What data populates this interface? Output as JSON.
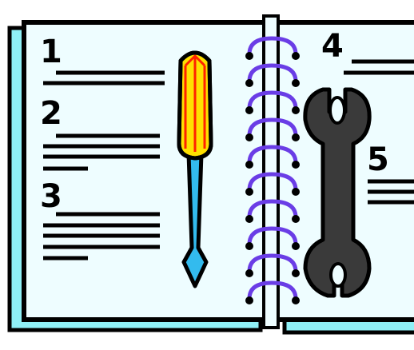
{
  "step_numbers": [
    "1",
    "2",
    "3",
    "4",
    "5"
  ],
  "colors": {
    "page": "#eefdff",
    "page_shadow": "#8ff0f6",
    "outline": "#000000",
    "spiral": "#6a3de6",
    "screwdriver_handle": "#ffe000",
    "screwdriver_handle_stripe": "#ff2200",
    "screwdriver_shaft": "#33bbee",
    "wrench": "#3a3a3a"
  },
  "icons": [
    "screwdriver-icon",
    "wrench-icon",
    "spiral-binding"
  ]
}
